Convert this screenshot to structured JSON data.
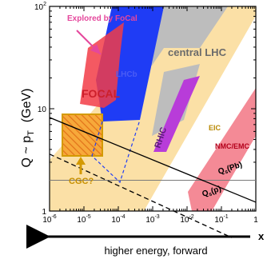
{
  "colors": {
    "ea_band": "#fbe0a6",
    "lhc_gray": "#bdbdbd",
    "focal_red": "#f23c46",
    "blue": "#1f3cf5",
    "purple": "#b83cd9",
    "pink": "#f48a96",
    "cgc_orange": "#f28a22",
    "cgc_gold": "#d49a00",
    "arrow_magenta": "#e5479c"
  },
  "chart_data": {
    "type": "region-map",
    "xscale": "log",
    "yscale": "log",
    "xlim": [
      1e-06,
      1
    ],
    "ylim": [
      1,
      100
    ],
    "ylabel": "Q ~ p",
    "ylabel_sub": "T",
    "ylabel_unit": "(GeV)",
    "xlabel": "x",
    "bottom_arrow_label": "higher energy, forward",
    "xticks": [
      {
        "value": 1e-06,
        "base": "10",
        "exp": "-6"
      },
      {
        "value": 1e-05,
        "base": "10",
        "exp": "-5"
      },
      {
        "value": 0.0001,
        "base": "10",
        "exp": "-4"
      },
      {
        "value": 0.001,
        "base": "10",
        "exp": "-3"
      },
      {
        "value": 0.01,
        "base": "10",
        "exp": "-2"
      },
      {
        "value": 0.1,
        "base": "10",
        "exp": "-1"
      },
      {
        "value": 1,
        "base": "1",
        "exp": ""
      }
    ],
    "yticks": [
      {
        "value": 1,
        "base": "1",
        "exp": ""
      },
      {
        "value": 10,
        "base": "10",
        "exp": ""
      },
      {
        "value": 100,
        "base": "10",
        "exp": "2"
      }
    ],
    "regions": [
      {
        "name": "EIC",
        "label": "EIC",
        "color": "ea_band"
      },
      {
        "name": "central LHC",
        "label": "central LHC",
        "color": "lhc_gray"
      },
      {
        "name": "FOCAL",
        "label": "FOCAL",
        "color": "focal_red"
      },
      {
        "name": "LHCb",
        "label": "LHCb",
        "color": "blue"
      },
      {
        "name": "RHIC",
        "label": "RHIC",
        "color": "purple"
      },
      {
        "name": "NMC/EMC",
        "label": "NMC/EMC",
        "color": "pink"
      },
      {
        "name": "CGC",
        "label": "CGC?",
        "color": "cgc_orange"
      }
    ],
    "lines": [
      {
        "name": "Qs(Pb)",
        "label": "Q",
        "label_sub": "s",
        "label_rest": "(Pb)",
        "style": "solid",
        "points": [
          [
            1e-06,
            8.2
          ],
          [
            1,
            1.22
          ]
        ]
      },
      {
        "name": "Qs(p)",
        "label": "Q",
        "label_sub": "s",
        "label_rest": "(p)",
        "style": "dashed",
        "points": [
          [
            1e-06,
            3.6
          ],
          [
            0.2,
            0.55
          ]
        ]
      }
    ],
    "reference_line_y": 2,
    "annotations": {
      "explored": "Explored by FoCal"
    }
  }
}
